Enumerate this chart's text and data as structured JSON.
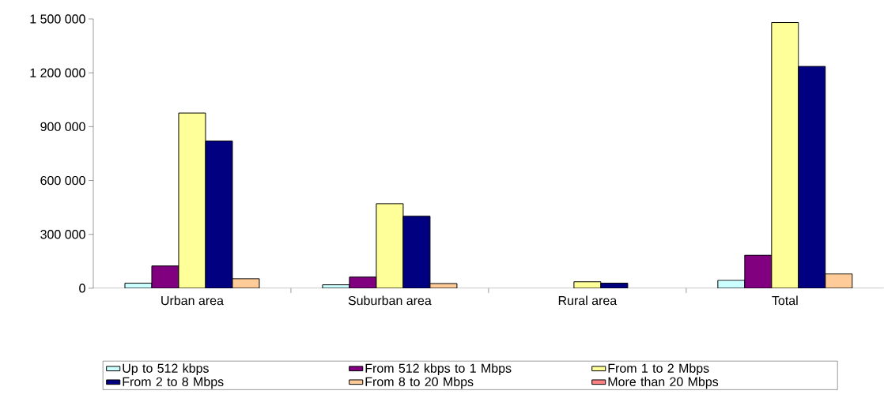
{
  "chart_data": {
    "type": "bar",
    "categories": [
      "Urban area",
      "Suburban area",
      "Rural area",
      "Total"
    ],
    "series": [
      {
        "name": "Up to 512 kbps",
        "color": "#ccffff",
        "values": [
          28000,
          19000,
          null,
          44000
        ]
      },
      {
        "name": "From 512 kbps to 1 Mbps",
        "color": "#800080",
        "values": [
          124000,
          62000,
          null,
          184000
        ]
      },
      {
        "name": "From 1 to 2 Mbps",
        "color": "#ffff99",
        "values": [
          976000,
          471000,
          36000,
          1480000
        ]
      },
      {
        "name": "From 2 to 8 Mbps",
        "color": "#000080",
        "values": [
          820000,
          401000,
          28000,
          1236000
        ]
      },
      {
        "name": "From 8 to 20 Mbps",
        "color": "#ffcc99",
        "values": [
          53000,
          26000,
          null,
          80000
        ]
      },
      {
        "name": "More than 20 Mbps",
        "color": "#ff8080",
        "values": [
          null,
          null,
          null,
          null
        ]
      }
    ],
    "ylim": [
      0,
      1500000
    ],
    "yticks": [
      0,
      {
        "value": 300000,
        "label": "300 000"
      },
      {
        "value": 600000,
        "label": "600 000"
      },
      {
        "value": 900000,
        "label": "900 000"
      },
      {
        "value": 1200000,
        "label": "1 200 000"
      },
      {
        "value": 1500000,
        "label": "1 500 000"
      }
    ],
    "grid": false,
    "legend": "bottom"
  }
}
